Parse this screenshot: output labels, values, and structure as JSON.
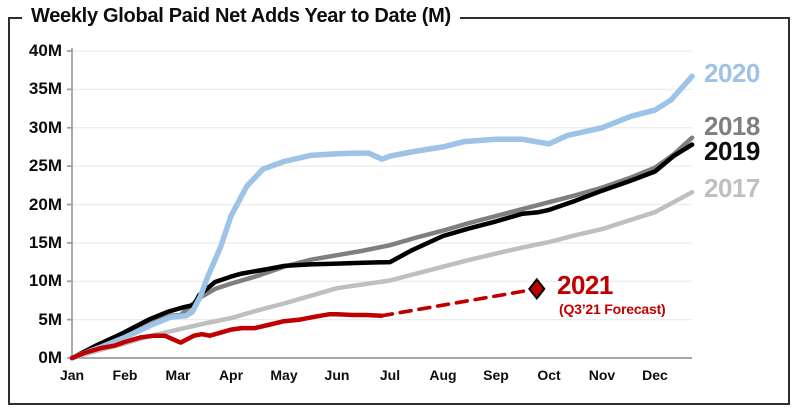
{
  "title": "Weekly Global Paid Net Adds Year to Date (M)",
  "chart_data": {
    "type": "line",
    "title": "Weekly Global Paid Net Adds Year to Date (M)",
    "xlabel": "",
    "ylabel": "",
    "x_unit": "month index (0 = Jan, 11.7 = end of Dec)",
    "y_unit": "millions of paid net adds, year to date",
    "xlim": [
      0,
      11.7
    ],
    "ylim": [
      0,
      40
    ],
    "y_tick_step": 5,
    "grid": "horizontal faint gridlines every 5M",
    "legend_position": "right",
    "x_ticks": [
      "Jan",
      "Feb",
      "Mar",
      "Apr",
      "May",
      "Jun",
      "Jul",
      "Aug",
      "Sep",
      "Oct",
      "Nov",
      "Dec"
    ],
    "y_ticks": [
      "0M",
      "5M",
      "10M",
      "15M",
      "20M",
      "25M",
      "30M",
      "35M",
      "40M"
    ],
    "axis_color": "#9c9c9c",
    "gridline_color": "#ececec",
    "series": [
      {
        "name": "2017",
        "color": "#bfbfbf",
        "style": "solid",
        "width": 4.5,
        "points": [
          [
            0,
            0
          ],
          [
            0.5,
            1.0
          ],
          [
            1,
            1.9
          ],
          [
            1.5,
            2.9
          ],
          [
            2,
            3.7
          ],
          [
            2.5,
            4.5
          ],
          [
            3,
            5.2
          ],
          [
            3.5,
            6.2
          ],
          [
            4,
            7.1
          ],
          [
            4.5,
            8.1
          ],
          [
            5,
            9.1
          ],
          [
            5.5,
            9.6
          ],
          [
            6,
            10.1
          ],
          [
            6.5,
            11.0
          ],
          [
            7,
            11.9
          ],
          [
            7.5,
            12.8
          ],
          [
            8,
            13.6
          ],
          [
            8.5,
            14.4
          ],
          [
            9,
            15.1
          ],
          [
            9.5,
            16.0
          ],
          [
            10,
            16.8
          ],
          [
            10.5,
            17.9
          ],
          [
            11,
            19.0
          ],
          [
            11.35,
            20.3
          ],
          [
            11.7,
            21.6
          ]
        ]
      },
      {
        "name": "2018",
        "color": "#7f7f7f",
        "style": "solid",
        "width": 4.5,
        "points": [
          [
            0,
            0
          ],
          [
            0.5,
            1.5
          ],
          [
            1,
            3.0
          ],
          [
            1.5,
            4.6
          ],
          [
            1.85,
            5.5
          ],
          [
            2.05,
            5.6
          ],
          [
            2.4,
            7.8
          ],
          [
            2.7,
            9.0
          ],
          [
            3,
            9.7
          ],
          [
            3.5,
            10.7
          ],
          [
            4,
            11.9
          ],
          [
            4.5,
            12.8
          ],
          [
            5,
            13.4
          ],
          [
            5.5,
            14.0
          ],
          [
            6,
            14.7
          ],
          [
            6.5,
            15.7
          ],
          [
            7,
            16.6
          ],
          [
            7.5,
            17.6
          ],
          [
            8,
            18.5
          ],
          [
            8.5,
            19.4
          ],
          [
            9,
            20.3
          ],
          [
            9.5,
            21.2
          ],
          [
            10,
            22.2
          ],
          [
            10.5,
            23.4
          ],
          [
            11,
            24.8
          ],
          [
            11.35,
            26.5
          ],
          [
            11.7,
            28.7
          ]
        ]
      },
      {
        "name": "2019",
        "color": "#000000",
        "style": "solid",
        "width": 4.5,
        "points": [
          [
            0,
            0
          ],
          [
            0.45,
            1.6
          ],
          [
            0.95,
            3.2
          ],
          [
            1.45,
            5.0
          ],
          [
            1.8,
            6.0
          ],
          [
            2.1,
            6.6
          ],
          [
            2.3,
            6.9
          ],
          [
            2.4,
            8.2
          ],
          [
            2.7,
            9.9
          ],
          [
            3,
            10.6
          ],
          [
            3.2,
            11.0
          ],
          [
            3.7,
            11.6
          ],
          [
            4,
            12.0
          ],
          [
            4.5,
            12.2
          ],
          [
            5,
            12.3
          ],
          [
            5.5,
            12.4
          ],
          [
            6,
            12.5
          ],
          [
            6.4,
            14.0
          ],
          [
            7,
            15.9
          ],
          [
            7.5,
            16.9
          ],
          [
            8,
            17.8
          ],
          [
            8.5,
            18.8
          ],
          [
            8.8,
            19.0
          ],
          [
            9,
            19.3
          ],
          [
            9.5,
            20.5
          ],
          [
            10,
            21.8
          ],
          [
            10.5,
            23.0
          ],
          [
            11,
            24.3
          ],
          [
            11.35,
            26.3
          ],
          [
            11.7,
            27.8
          ]
        ]
      },
      {
        "name": "2020",
        "color": "#9dc3e6",
        "style": "solid",
        "width": 5.5,
        "points": [
          [
            0,
            0
          ],
          [
            0.5,
            1.3
          ],
          [
            1,
            2.7
          ],
          [
            1.5,
            4.3
          ],
          [
            1.85,
            5.3
          ],
          [
            2.15,
            5.5
          ],
          [
            2.27,
            6.0
          ],
          [
            2.42,
            8.0
          ],
          [
            2.55,
            10.4
          ],
          [
            2.8,
            14.4
          ],
          [
            3,
            18.5
          ],
          [
            3.3,
            22.4
          ],
          [
            3.6,
            24.6
          ],
          [
            4,
            25.6
          ],
          [
            4.5,
            26.4
          ],
          [
            5,
            26.6
          ],
          [
            5.35,
            26.7
          ],
          [
            5.6,
            26.7
          ],
          [
            5.85,
            25.9
          ],
          [
            6,
            26.3
          ],
          [
            6.45,
            26.9
          ],
          [
            7,
            27.5
          ],
          [
            7.4,
            28.2
          ],
          [
            8,
            28.5
          ],
          [
            8.5,
            28.5
          ],
          [
            9,
            27.9
          ],
          [
            9.35,
            29.0
          ],
          [
            10,
            30.0
          ],
          [
            10.55,
            31.5
          ],
          [
            11,
            32.3
          ],
          [
            11.3,
            33.6
          ],
          [
            11.7,
            36.7
          ]
        ]
      },
      {
        "name": "2021",
        "color": "#c00000",
        "style": "solid",
        "width": 4.5,
        "points": [
          [
            0,
            0
          ],
          [
            0.25,
            0.7
          ],
          [
            0.55,
            1.3
          ],
          [
            0.8,
            1.6
          ],
          [
            1,
            2.1
          ],
          [
            1.3,
            2.7
          ],
          [
            1.55,
            2.9
          ],
          [
            1.75,
            2.9
          ],
          [
            1.95,
            2.3
          ],
          [
            2.05,
            2.0
          ],
          [
            2.3,
            2.9
          ],
          [
            2.45,
            3.1
          ],
          [
            2.6,
            2.9
          ],
          [
            2.8,
            3.3
          ],
          [
            3,
            3.7
          ],
          [
            3.2,
            3.9
          ],
          [
            3.45,
            3.9
          ],
          [
            3.7,
            4.3
          ],
          [
            4,
            4.8
          ],
          [
            4.3,
            5.0
          ],
          [
            4.6,
            5.4
          ],
          [
            4.85,
            5.7
          ],
          [
            5,
            5.7
          ],
          [
            5.3,
            5.6
          ],
          [
            5.55,
            5.6
          ],
          [
            5.84,
            5.5
          ]
        ]
      },
      {
        "name": "2021-forecast",
        "color": "#c00000",
        "style": "dashed",
        "width": 3.6,
        "points": [
          [
            5.84,
            5.5
          ],
          [
            8.77,
            9.0
          ]
        ]
      }
    ],
    "marker": {
      "shape": "diamond",
      "x": 8.77,
      "y": 9.0,
      "fill": "#c00000",
      "stroke": "#000000"
    },
    "legend": [
      {
        "label": "2020",
        "color": "#9dc3e6"
      },
      {
        "label": "2018",
        "color": "#7f7f7f"
      },
      {
        "label": "2019",
        "color": "#0d0d0d"
      },
      {
        "label": "2017",
        "color": "#bfbfbf"
      }
    ],
    "annotations": [
      {
        "text": "2021",
        "color": "#c00000"
      },
      {
        "text": "(Q3’21 Forecast)",
        "color": "#c00000"
      }
    ]
  }
}
